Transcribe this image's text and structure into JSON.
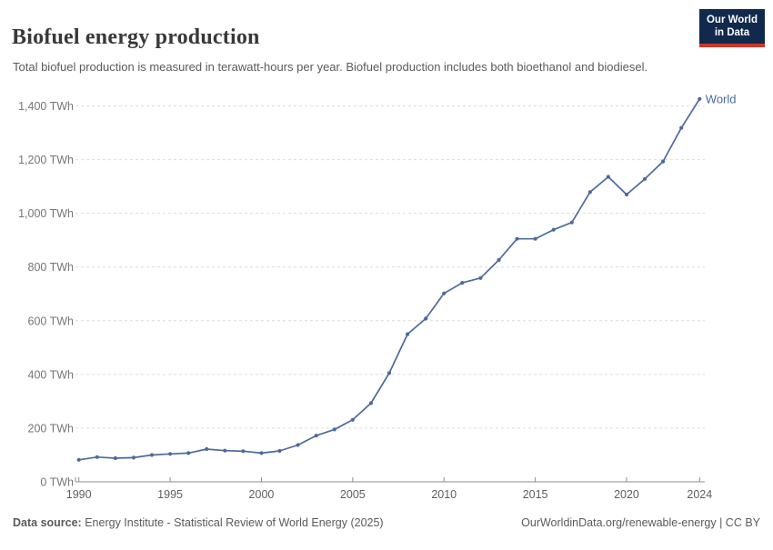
{
  "header": {
    "title": "Biofuel energy production",
    "subtitle": "Total biofuel production is measured in terawatt-hours per year. Biofuel production includes both bioethanol and biodiesel.",
    "logo": {
      "line1": "Our World",
      "line2": "in Data"
    }
  },
  "chart_data": {
    "type": "line",
    "title": "Biofuel energy production",
    "unit": "TWh",
    "x": [
      1990,
      1991,
      1992,
      1993,
      1994,
      1995,
      1996,
      1997,
      1998,
      1999,
      2000,
      2001,
      2002,
      2003,
      2004,
      2005,
      2006,
      2007,
      2008,
      2009,
      2010,
      2011,
      2012,
      2013,
      2014,
      2015,
      2016,
      2017,
      2018,
      2019,
      2020,
      2021,
      2022,
      2023,
      2024
    ],
    "series": [
      {
        "name": "World",
        "color": "#4C6A9C",
        "values": [
          82,
          92,
          88,
          90,
          100,
          104,
          107,
          122,
          116,
          114,
          107,
          115,
          137,
          172,
          195,
          231,
          293,
          405,
          550,
          608,
          702,
          741,
          759,
          826,
          905,
          905,
          939,
          966,
          1079,
          1136,
          1070,
          1128,
          1193,
          1318,
          1426
        ]
      }
    ],
    "xlim": [
      1990,
      2024
    ],
    "ylim": [
      0,
      1400
    ],
    "x_ticks": [
      1990,
      1995,
      2000,
      2005,
      2010,
      2015,
      2020,
      2024
    ],
    "y_ticks": [
      {
        "v": 0,
        "label": "0 TWh"
      },
      {
        "v": 200,
        "label": "200 TWh"
      },
      {
        "v": 400,
        "label": "400 TWh"
      },
      {
        "v": 600,
        "label": "600 TWh"
      },
      {
        "v": 800,
        "label": "800 TWh"
      },
      {
        "v": 1000,
        "label": "1,000 TWh"
      },
      {
        "v": 1200,
        "label": "1,200 TWh"
      },
      {
        "v": 1400,
        "label": "1,400 TWh"
      }
    ],
    "grid": "horizontal-dashed",
    "legend_position": "end-of-line",
    "end_label": "World"
  },
  "footer": {
    "source_label": "Data source:",
    "source_text": " Energy Institute - Statistical Review of World Energy (2025)",
    "credit": "OurWorldinData.org/renewable-energy | CC BY"
  },
  "colors": {
    "line": "#4C6A9C",
    "grid": "#dcdcdc",
    "axis": "#8f8f8f",
    "y_tick_text": "#767676",
    "x_tick_text": "#5e5e5e",
    "title": "#383838",
    "subtitle": "#5b5b5b",
    "logo_bg": "#12294e",
    "logo_red": "#d0352b"
  }
}
